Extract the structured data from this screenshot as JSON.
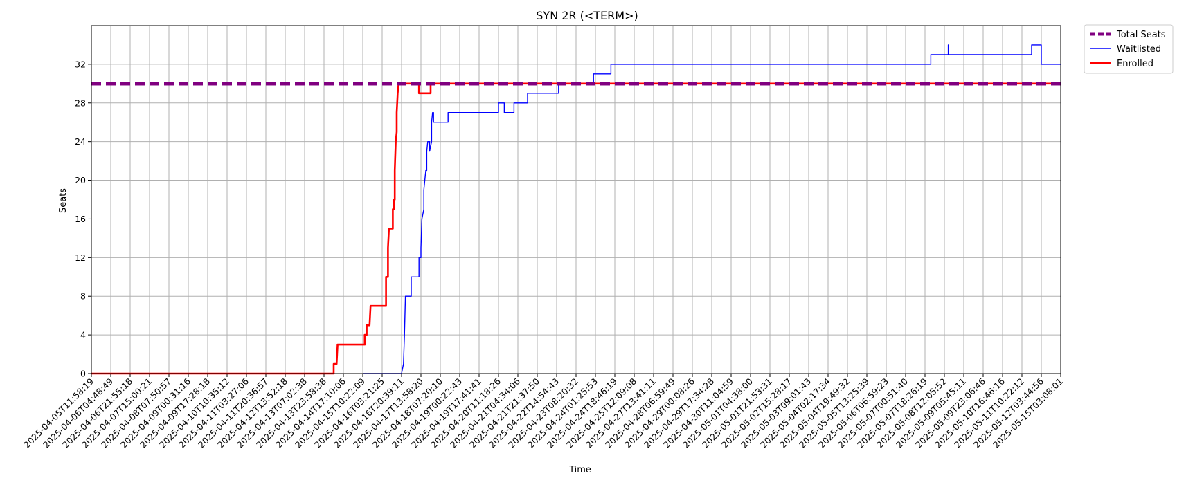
{
  "chart_data": {
    "type": "line",
    "title": "SYN 2R (<TERM>)",
    "xlabel": "Time",
    "ylabel": "Seats",
    "ylim": [
      0,
      36
    ],
    "yticks": [
      0,
      4,
      8,
      12,
      16,
      20,
      24,
      28,
      32
    ],
    "grid": true,
    "legend_position": "outside-top-right",
    "x_tick_labels": [
      "2025-04-05T11:58:19",
      "2025-04-06T04:48:49",
      "2025-04-06T21:55:18",
      "2025-04-07T15:00:21",
      "2025-04-08T07:50:57",
      "2025-04-09T00:31:16",
      "2025-04-09T17:28:18",
      "2025-04-10T10:35:12",
      "2025-04-11T03:27:06",
      "2025-04-11T20:36:57",
      "2025-04-12T13:52:18",
      "2025-04-13T07:02:38",
      "2025-04-13T23:58:38",
      "2025-04-14T17:10:06",
      "2025-04-15T10:22:09",
      "2025-04-16T03:21:25",
      "2025-04-16T20:39:11",
      "2025-04-17T13:58:20",
      "2025-04-18T07:20:10",
      "2025-04-19T00:22:43",
      "2025-04-19T17:41:41",
      "2025-04-20T11:18:26",
      "2025-04-21T04:34:06",
      "2025-04-21T21:37:50",
      "2025-04-22T14:54:43",
      "2025-04-23T08:20:32",
      "2025-04-24T01:25:53",
      "2025-04-24T18:46:19",
      "2025-04-25T12:09:08",
      "2025-04-27T13:41:11",
      "2025-04-28T06:59:49",
      "2025-04-29T00:08:26",
      "2025-04-29T17:34:28",
      "2025-04-30T11:04:59",
      "2025-05-01T04:38:00",
      "2025-05-01T21:53:31",
      "2025-05-02T15:28:17",
      "2025-05-03T09:01:43",
      "2025-05-04T02:17:34",
      "2025-05-04T19:49:32",
      "2025-05-05T13:25:39",
      "2025-05-06T06:59:23",
      "2025-05-07T00:51:40",
      "2025-05-07T18:26:19",
      "2025-05-08T12:05:52",
      "2025-05-09T05:45:11",
      "2025-05-09T23:06:46",
      "2025-05-10T16:46:16",
      "2025-05-11T10:22:12",
      "2025-05-12T03:44:56",
      "2025-05-15T03:08:01"
    ],
    "series": [
      {
        "name": "Total Seats",
        "color": "#800080",
        "style": "dashed",
        "points": [
          [
            0,
            30
          ],
          [
            50,
            30
          ]
        ]
      },
      {
        "name": "Waitlisted",
        "color": "#0000ff",
        "style": "solid-thin",
        "points": [
          [
            14.0,
            0
          ],
          [
            16.0,
            0
          ],
          [
            16.1,
            1
          ],
          [
            16.15,
            4
          ],
          [
            16.2,
            8
          ],
          [
            16.5,
            8
          ],
          [
            16.5,
            10
          ],
          [
            16.9,
            10
          ],
          [
            16.9,
            12
          ],
          [
            17.0,
            12
          ],
          [
            17.0,
            13
          ],
          [
            17.05,
            16
          ],
          [
            17.15,
            17
          ],
          [
            17.15,
            19
          ],
          [
            17.2,
            20
          ],
          [
            17.25,
            21
          ],
          [
            17.3,
            21
          ],
          [
            17.3,
            23
          ],
          [
            17.35,
            24
          ],
          [
            17.45,
            24
          ],
          [
            17.45,
            23
          ],
          [
            17.55,
            24
          ],
          [
            17.55,
            26
          ],
          [
            17.6,
            27
          ],
          [
            17.65,
            27
          ],
          [
            17.65,
            26
          ],
          [
            18.4,
            26
          ],
          [
            18.4,
            27
          ],
          [
            21.0,
            27
          ],
          [
            21.0,
            28
          ],
          [
            21.3,
            28
          ],
          [
            21.3,
            27
          ],
          [
            21.8,
            27
          ],
          [
            21.8,
            28
          ],
          [
            22.5,
            28
          ],
          [
            22.5,
            29
          ],
          [
            24.1,
            29
          ],
          [
            24.1,
            30
          ],
          [
            25.9,
            30
          ],
          [
            25.9,
            31
          ],
          [
            26.8,
            31
          ],
          [
            26.8,
            32
          ],
          [
            43.3,
            32
          ],
          [
            43.3,
            33
          ],
          [
            44.2,
            33
          ],
          [
            44.2,
            34
          ],
          [
            44.22,
            34
          ],
          [
            44.22,
            33
          ],
          [
            48.5,
            33
          ],
          [
            48.5,
            34
          ],
          [
            49.0,
            34
          ],
          [
            49.0,
            32
          ],
          [
            50.0,
            32
          ]
        ]
      },
      {
        "name": "Enrolled",
        "color": "#ff0000",
        "style": "solid-thick",
        "points": [
          [
            0,
            0
          ],
          [
            12.5,
            0
          ],
          [
            12.5,
            1
          ],
          [
            12.65,
            1
          ],
          [
            12.7,
            3
          ],
          [
            14.1,
            3
          ],
          [
            14.1,
            4
          ],
          [
            14.2,
            4
          ],
          [
            14.2,
            5
          ],
          [
            14.35,
            5
          ],
          [
            14.4,
            7
          ],
          [
            15.2,
            7
          ],
          [
            15.2,
            10
          ],
          [
            15.3,
            10
          ],
          [
            15.3,
            13
          ],
          [
            15.35,
            15
          ],
          [
            15.55,
            15
          ],
          [
            15.55,
            17
          ],
          [
            15.6,
            17
          ],
          [
            15.6,
            18
          ],
          [
            15.65,
            18
          ],
          [
            15.65,
            21
          ],
          [
            15.7,
            24
          ],
          [
            15.75,
            25
          ],
          [
            15.75,
            27
          ],
          [
            15.8,
            29
          ],
          [
            15.85,
            30
          ],
          [
            16.9,
            30
          ],
          [
            16.9,
            29
          ],
          [
            17.5,
            29
          ],
          [
            17.5,
            30
          ],
          [
            50.0,
            30
          ]
        ]
      }
    ]
  }
}
